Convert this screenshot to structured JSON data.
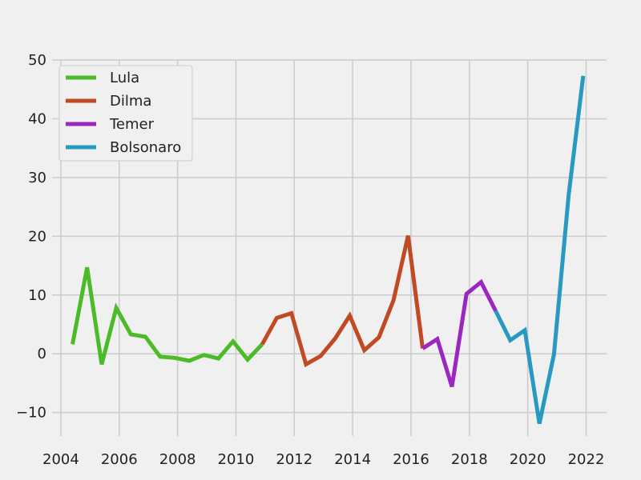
{
  "chart_data": {
    "type": "line",
    "title": "",
    "xlabel": "",
    "ylabel": "",
    "xlim": [
      2003.7,
      2022.7
    ],
    "ylim": [
      -14,
      50
    ],
    "xticks": [
      2004,
      2006,
      2008,
      2010,
      2012,
      2014,
      2016,
      2018,
      2020,
      2022
    ],
    "yticks": [
      -10,
      0,
      10,
      20,
      30,
      40,
      50
    ],
    "yticklabels": [
      "−10",
      "0",
      "10",
      "20",
      "30",
      "40",
      "50"
    ],
    "grid": true,
    "legend_position": "top-left",
    "series": [
      {
        "name": "Lula",
        "color": "#4cbb2a",
        "points": [
          [
            2004.4,
            1.6
          ],
          [
            2004.9,
            14.7
          ],
          [
            2005.4,
            -1.8
          ],
          [
            2005.9,
            7.8
          ],
          [
            2006.4,
            3.3
          ],
          [
            2006.9,
            2.9
          ],
          [
            2007.4,
            -0.5
          ],
          [
            2007.9,
            -0.7
          ],
          [
            2008.4,
            -1.2
          ],
          [
            2008.9,
            -0.2
          ],
          [
            2009.4,
            -0.8
          ],
          [
            2009.9,
            2.1
          ],
          [
            2010.4,
            -1.0
          ],
          [
            2010.9,
            1.6
          ]
        ]
      },
      {
        "name": "Dilma",
        "color": "#c04a24",
        "points": [
          [
            2010.9,
            1.6
          ],
          [
            2011.4,
            6.1
          ],
          [
            2011.9,
            6.9
          ],
          [
            2012.4,
            -1.8
          ],
          [
            2012.9,
            -0.4
          ],
          [
            2013.4,
            2.6
          ],
          [
            2013.9,
            6.5
          ],
          [
            2014.4,
            0.6
          ],
          [
            2014.9,
            2.8
          ],
          [
            2015.4,
            9.1
          ],
          [
            2015.9,
            20.1
          ],
          [
            2016.4,
            0.9
          ]
        ]
      },
      {
        "name": "Temer",
        "color": "#9b27c0",
        "points": [
          [
            2016.4,
            0.9
          ],
          [
            2016.9,
            2.5
          ],
          [
            2017.4,
            -5.6
          ],
          [
            2017.9,
            10.2
          ],
          [
            2018.4,
            12.2
          ],
          [
            2018.9,
            7.3
          ]
        ]
      },
      {
        "name": "Bolsonaro",
        "color": "#2899c1",
        "points": [
          [
            2018.9,
            7.3
          ],
          [
            2019.4,
            2.3
          ],
          [
            2019.9,
            4.0
          ],
          [
            2020.4,
            -11.9
          ],
          [
            2020.9,
            -0.1
          ],
          [
            2021.4,
            27.0
          ],
          [
            2021.9,
            47.3
          ]
        ]
      }
    ]
  }
}
